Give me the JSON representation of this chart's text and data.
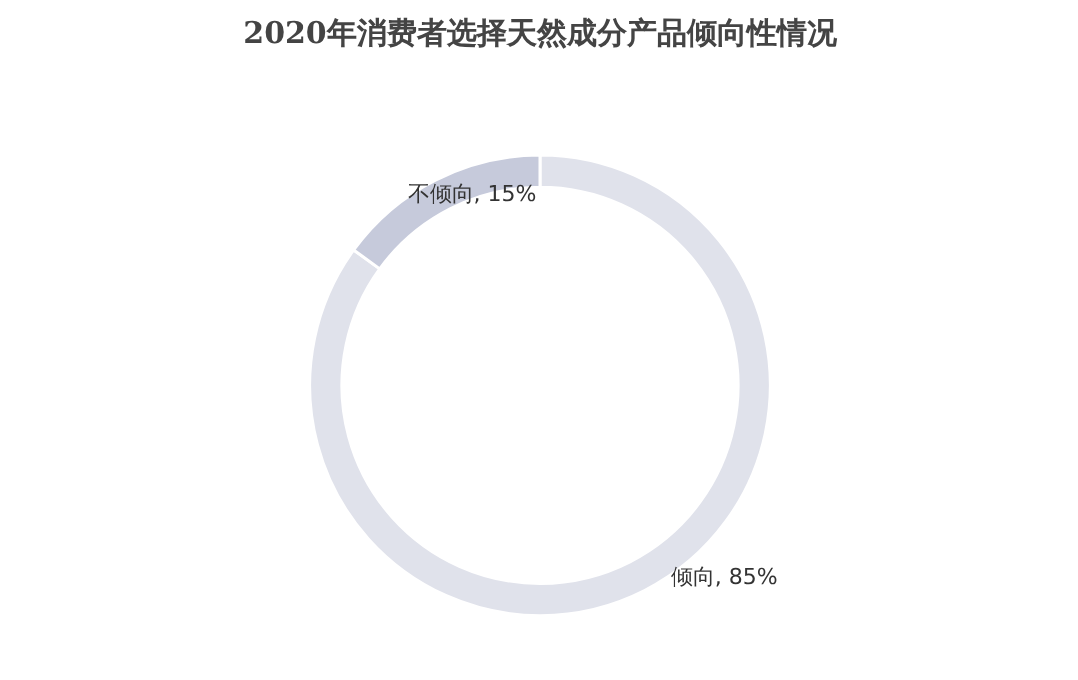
{
  "chart_data": {
    "type": "donut",
    "title": "2020年消费者选择天然成分产品倾向性情况",
    "categories": [
      "倾向",
      "不倾向"
    ],
    "values": [
      85,
      15
    ],
    "colors": [
      "#e0e2eb",
      "#c6cadb"
    ],
    "value_labels": [
      ", 85%",
      ", 15%"
    ]
  }
}
